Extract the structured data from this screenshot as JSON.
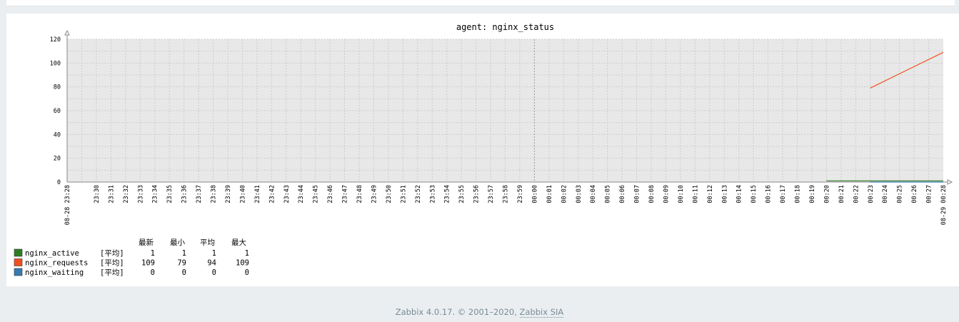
{
  "footer": {
    "version_text": "Zabbix 4.0.17. © 2001–2020, ",
    "company_link": "Zabbix SIA"
  },
  "colors": {
    "plot_background": "#e8e8e8",
    "grid": "#cccccc",
    "axis": "#888888",
    "highlight_label": "#e02020"
  },
  "chart_data": {
    "type": "line",
    "title": "agent: nginx_status",
    "ylim": [
      0,
      120
    ],
    "y_ticks": [
      0,
      20,
      40,
      60,
      80,
      100,
      120
    ],
    "x_start_label": "08-28 23:28",
    "x_end_label": "08-29 00:28",
    "x_tick_labels": [
      "23:30",
      "23:31",
      "23:32",
      "23:33",
      "23:34",
      "23:35",
      "23:36",
      "23:37",
      "23:38",
      "23:39",
      "23:40",
      "23:41",
      "23:42",
      "23:43",
      "23:44",
      "23:45",
      "23:46",
      "23:47",
      "23:48",
      "23:49",
      "23:50",
      "23:51",
      "23:52",
      "23:53",
      "23:54",
      "23:55",
      "23:56",
      "23:57",
      "23:58",
      "23:59",
      "00:00",
      "00:01",
      "00:02",
      "00:03",
      "00:04",
      "00:05",
      "00:06",
      "00:07",
      "00:08",
      "00:09",
      "00:10",
      "00:11",
      "00:12",
      "00:13",
      "00:14",
      "00:15",
      "00:16",
      "00:17",
      "00:18",
      "00:19",
      "00:20",
      "00:21",
      "00:22",
      "00:23",
      "00:24",
      "00:25",
      "00:26",
      "00:27",
      "00:28"
    ],
    "highlight_tick": "00:00",
    "grid": true,
    "legend_headers": [
      "最新",
      "最小",
      "平均",
      "最大"
    ],
    "series": [
      {
        "name": "nginx_active",
        "color": "#2e7d23",
        "func": "[平均]",
        "stats": {
          "last": "1",
          "min": "1",
          "avg": "1",
          "max": "1"
        },
        "points": [
          [
            "00:20",
            1
          ],
          [
            "00:28",
            1
          ]
        ]
      },
      {
        "name": "nginx_requests",
        "color": "#f05020",
        "func": "[平均]",
        "stats": {
          "last": "109",
          "min": "79",
          "avg": "94",
          "max": "109"
        },
        "points": [
          [
            "00:23",
            79
          ],
          [
            "00:28",
            109
          ]
        ]
      },
      {
        "name": "nginx_waiting",
        "color": "#3a7bb0",
        "func": "[平均]",
        "stats": {
          "last": "0",
          "min": "0",
          "avg": "0",
          "max": "0"
        },
        "points": [
          [
            "00:23",
            0
          ],
          [
            "00:28",
            0
          ]
        ]
      }
    ]
  }
}
